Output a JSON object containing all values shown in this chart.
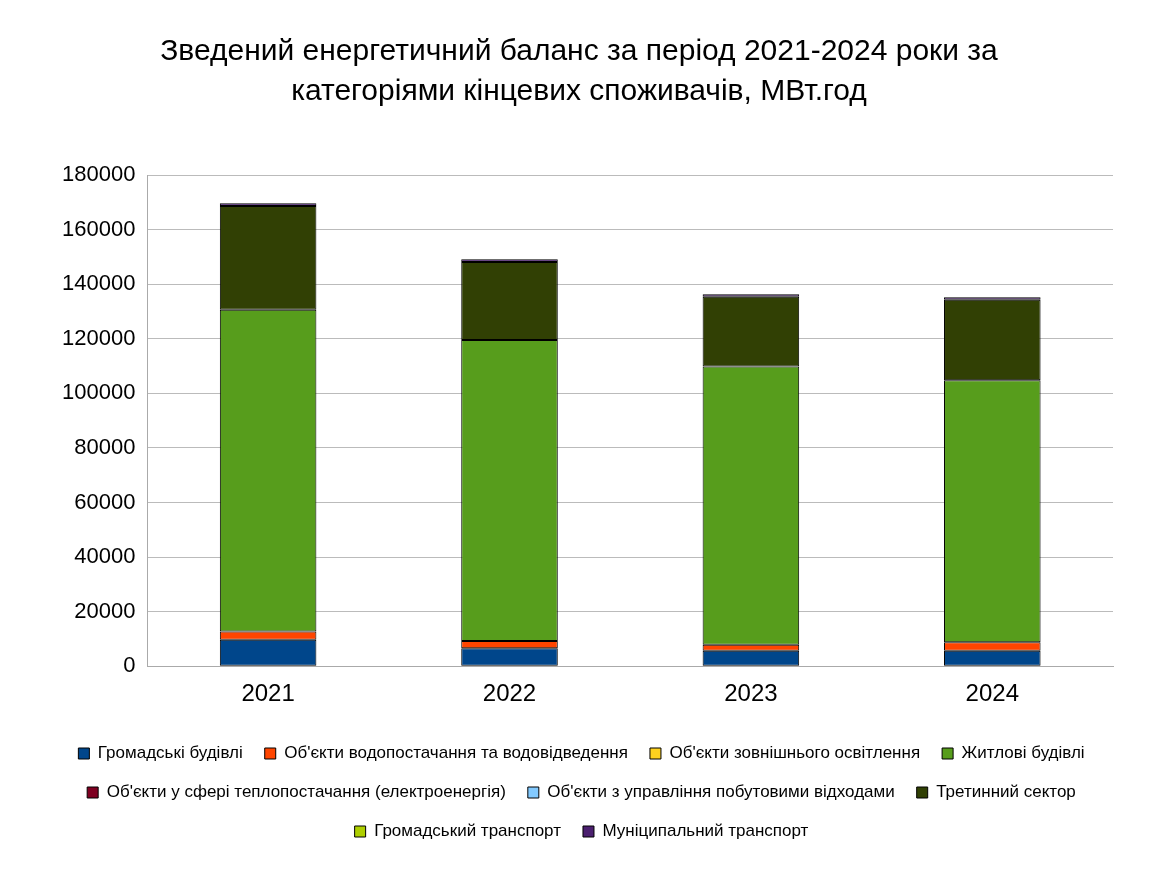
{
  "chart_data": {
    "type": "bar",
    "stacked": true,
    "title": "Зведений енергетичний баланс за період 2021-2024 роки за категоріями кінцевих споживачів, МВт.год",
    "categories": [
      "2021",
      "2022",
      "2023",
      "2024"
    ],
    "series": [
      {
        "name": "Громадські будівлі",
        "color": "#00468b",
        "values": [
          9700,
          6600,
          5700,
          5700
        ]
      },
      {
        "name": "Об'єкти водопостачання та водовідведення",
        "color": "#ff4500",
        "values": [
          3000,
          2600,
          2200,
          3100
        ]
      },
      {
        "name": "Об'єкти зовнішнього освітлення",
        "color": "#ffd21e",
        "values": [
          0,
          0,
          0,
          0
        ]
      },
      {
        "name": "Житлові будівлі",
        "color": "#579d1c",
        "values": [
          118000,
          110400,
          102000,
          96000
        ]
      },
      {
        "name": "Об'єкти у сфері теплопостачання (електроенергія)",
        "color": "#7e0021",
        "values": [
          0,
          0,
          0,
          0
        ]
      },
      {
        "name": "Об'єкти з управління побутовими відходами",
        "color": "#83caff",
        "values": [
          0,
          0,
          0,
          0
        ]
      },
      {
        "name": "Третинний сектор",
        "color": "#314004",
        "values": [
          38000,
          28600,
          25500,
          29500
        ]
      },
      {
        "name": "Громадський транспорт",
        "color": "#aecf00",
        "values": [
          0,
          0,
          0,
          0
        ]
      },
      {
        "name": "Муніципальний транспорт",
        "color": "#4b1f6f",
        "values": [
          1000,
          1000,
          1000,
          1000
        ]
      }
    ],
    "ylim": [
      0,
      180000
    ],
    "yticks": [
      0,
      20000,
      40000,
      60000,
      80000,
      100000,
      120000,
      140000,
      160000,
      180000
    ],
    "grid": "y",
    "legend": "bottom"
  }
}
